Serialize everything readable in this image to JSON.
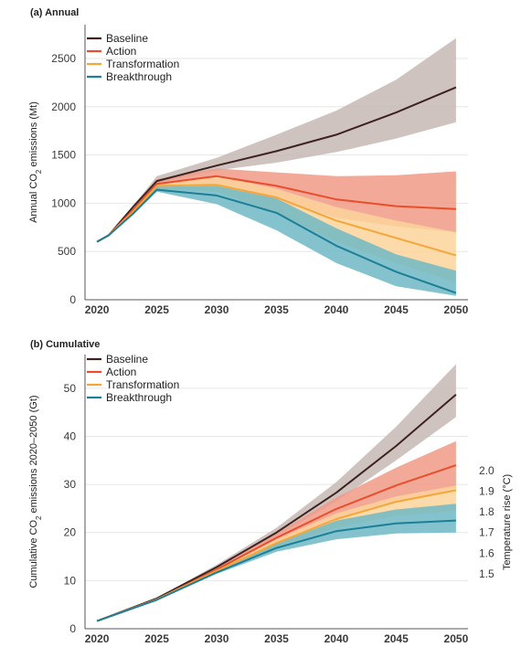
{
  "chart_data": [
    {
      "type": "line",
      "title": "(a) Annual",
      "ylabel_main": "Annual CO",
      "ylabel_sub": "2",
      "ylabel_rest": " emissions (Mt)",
      "xticks": [
        2020,
        2025,
        2030,
        2035,
        2040,
        2045,
        2050
      ],
      "yticks": [
        0,
        500,
        1000,
        1500,
        2000,
        2500
      ],
      "xlim": [
        2019,
        2051
      ],
      "ylim": [
        0,
        2850
      ],
      "grid": "horizontal",
      "legend_position": "top-left",
      "x": [
        2020,
        2021,
        2023,
        2025,
        2030,
        2035,
        2040,
        2045,
        2050
      ],
      "series": [
        {
          "name": "Baseline",
          "color": "#3d2320",
          "band_color": "#c7b8b5",
          "values": [
            600,
            670,
            960,
            1230,
            1390,
            1540,
            1710,
            1940,
            2200
          ],
          "lower": [
            600,
            670,
            950,
            1210,
            1340,
            1420,
            1530,
            1670,
            1840
          ],
          "upper": [
            600,
            670,
            970,
            1280,
            1470,
            1710,
            1960,
            2280,
            2710
          ]
        },
        {
          "name": "Action",
          "color": "#e94e2c",
          "band_color": "#f19a86",
          "values": [
            600,
            670,
            930,
            1200,
            1280,
            1180,
            1040,
            970,
            940
          ],
          "lower": [
            600,
            670,
            920,
            1160,
            1200,
            1020,
            850,
            760,
            700
          ],
          "upper": [
            600,
            670,
            940,
            1250,
            1360,
            1320,
            1280,
            1290,
            1330
          ]
        },
        {
          "name": "Transformation",
          "color": "#f4a63b",
          "band_color": "#fbd49a",
          "values": [
            600,
            670,
            910,
            1180,
            1190,
            1060,
            820,
            640,
            460
          ],
          "lower": [
            600,
            670,
            900,
            1150,
            1120,
            900,
            600,
            380,
            180
          ],
          "upper": [
            600,
            670,
            920,
            1210,
            1280,
            1150,
            960,
            820,
            700
          ]
        },
        {
          "name": "Breakthrough",
          "color": "#1c7f96",
          "band_color": "#6fb8c6",
          "values": [
            600,
            670,
            890,
            1140,
            1080,
            900,
            560,
            290,
            70
          ],
          "lower": [
            600,
            670,
            880,
            1120,
            990,
            720,
            380,
            140,
            40
          ],
          "upper": [
            600,
            670,
            900,
            1170,
            1180,
            1050,
            740,
            470,
            300
          ]
        }
      ]
    },
    {
      "type": "line",
      "title": "(b) Cumulative",
      "ylabel_main": "Cumulative CO",
      "ylabel_sub": "2",
      "ylabel_rest": " emissions 2020–2050 (Gt)",
      "y2label": "Temperature rise (°C)",
      "xticks": [
        2020,
        2025,
        2030,
        2035,
        2040,
        2045,
        2050
      ],
      "yticks": [
        0,
        10,
        20,
        30,
        40,
        50
      ],
      "y2ticks": [
        {
          "label": "2.0",
          "gt": 32.9
        },
        {
          "label": "1.9",
          "gt": 28.6
        },
        {
          "label": "1.8",
          "gt": 24.3
        },
        {
          "label": "1.7",
          "gt": 20.0
        },
        {
          "label": "1.6",
          "gt": 15.7
        },
        {
          "label": "1.5",
          "gt": 11.4
        }
      ],
      "xlim": [
        2019,
        2051
      ],
      "ylim": [
        0,
        57
      ],
      "grid": "horizontal",
      "legend_position": "top-left",
      "x": [
        2020,
        2025,
        2030,
        2035,
        2040,
        2045,
        2050
      ],
      "series": [
        {
          "name": "Baseline",
          "color": "#3d2320",
          "band_color": "#c7b8b5",
          "values": [
            1.6,
            6.3,
            12.8,
            20.0,
            28.3,
            38.0,
            48.7
          ],
          "lower": [
            1.6,
            6.2,
            12.4,
            19.3,
            26.5,
            35.0,
            44.0
          ],
          "upper": [
            1.6,
            6.4,
            13.3,
            21.0,
            30.5,
            42.0,
            55.0
          ]
        },
        {
          "name": "Action",
          "color": "#e94e2c",
          "band_color": "#f19a86",
          "values": [
            1.6,
            6.1,
            12.3,
            18.9,
            24.9,
            29.8,
            34.0
          ],
          "lower": [
            1.6,
            6.0,
            11.9,
            17.8,
            22.8,
            26.2,
            29.2
          ],
          "upper": [
            1.6,
            6.2,
            12.6,
            19.8,
            27.3,
            33.5,
            39.0
          ]
        },
        {
          "name": "Transformation",
          "color": "#f4a63b",
          "band_color": "#fbd49a",
          "values": [
            1.6,
            6.1,
            12.0,
            17.8,
            22.8,
            26.4,
            28.8
          ],
          "lower": [
            1.6,
            6.0,
            11.7,
            17.0,
            21.0,
            23.5,
            24.5
          ],
          "upper": [
            1.6,
            6.2,
            12.4,
            18.6,
            24.0,
            27.5,
            29.8
          ]
        },
        {
          "name": "Breakthrough",
          "color": "#1c7f96",
          "band_color": "#6fb8c6",
          "values": [
            1.6,
            6.0,
            11.7,
            16.8,
            20.3,
            21.9,
            22.5
          ],
          "lower": [
            1.6,
            5.9,
            11.4,
            16.0,
            18.6,
            19.8,
            20.0
          ],
          "upper": [
            1.6,
            6.1,
            12.0,
            17.7,
            22.5,
            24.8,
            26.0
          ]
        }
      ]
    }
  ]
}
